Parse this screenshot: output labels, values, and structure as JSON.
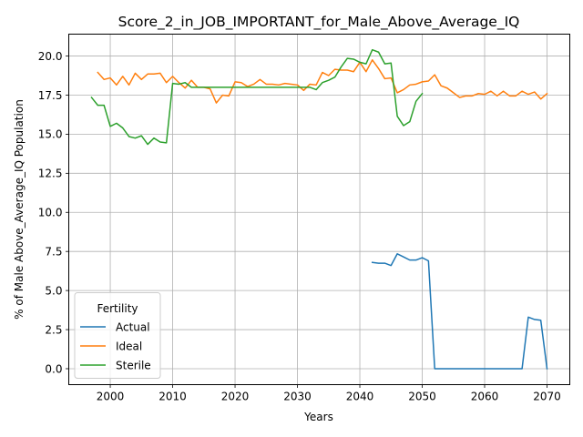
{
  "chart_data": {
    "type": "line",
    "title": "Score_2_in_JOB_IMPORTANT_for_Male_Above_Average_IQ",
    "xlabel": "Years",
    "ylabel": "% of Male Above_Average_IQ Population",
    "xlim": [
      1993.35,
      2073.65
    ],
    "ylim": [
      -1.02,
      21.4
    ],
    "xticks": [
      2000,
      2010,
      2020,
      2030,
      2040,
      2050,
      2060,
      2070
    ],
    "yticks": [
      0.0,
      2.5,
      5.0,
      7.5,
      10.0,
      12.5,
      15.0,
      17.5,
      20.0
    ],
    "xtick_labels": [
      "2000",
      "2010",
      "2020",
      "2030",
      "2040",
      "2050",
      "2060",
      "2070"
    ],
    "ytick_labels": [
      "0.0",
      "2.5",
      "5.0",
      "7.5",
      "10.0",
      "12.5",
      "15.0",
      "17.5",
      "20.0"
    ],
    "grid": true,
    "legend": {
      "title": "Fertility",
      "position": "lower-left"
    },
    "series": [
      {
        "name": "Actual",
        "color": "#1f77b4",
        "x": [
          2042,
          2043,
          2044,
          2045,
          2046,
          2047,
          2048,
          2049,
          2050,
          2051,
          2052,
          2053,
          2054,
          2055,
          2056,
          2057,
          2058,
          2059,
          2060,
          2061,
          2062,
          2063,
          2064,
          2065,
          2066,
          2067,
          2068,
          2069,
          2070
        ],
        "y": [
          6.8,
          6.75,
          6.75,
          6.6,
          7.35,
          7.15,
          6.95,
          6.95,
          7.1,
          6.9,
          0.0,
          0.0,
          0.0,
          0.0,
          0.0,
          0.0,
          0.0,
          0.0,
          0.0,
          0.0,
          0.0,
          0.0,
          0.0,
          0.0,
          0.0,
          3.3,
          3.15,
          3.1,
          0.0
        ]
      },
      {
        "name": "Ideal",
        "color": "#ff7f0e",
        "x": [
          1998,
          1999,
          2000,
          2001,
          2002,
          2003,
          2004,
          2005,
          2006,
          2007,
          2008,
          2009,
          2010,
          2011,
          2012,
          2013,
          2014,
          2015,
          2016,
          2017,
          2018,
          2019,
          2020,
          2021,
          2022,
          2023,
          2024,
          2025,
          2026,
          2027,
          2028,
          2029,
          2030,
          2031,
          2032,
          2033,
          2034,
          2035,
          2036,
          2037,
          2038,
          2039,
          2040,
          2041,
          2042,
          2043,
          2044,
          2045,
          2046,
          2047,
          2048,
          2049,
          2050,
          2051,
          2052,
          2053,
          2054,
          2055,
          2056,
          2057,
          2058,
          2059,
          2060,
          2061,
          2062,
          2063,
          2064,
          2065,
          2066,
          2067,
          2068,
          2069,
          2070
        ],
        "y": [
          18.95,
          18.5,
          18.6,
          18.15,
          18.7,
          18.15,
          18.9,
          18.5,
          18.85,
          18.85,
          18.9,
          18.3,
          18.7,
          18.3,
          17.95,
          18.45,
          18.0,
          18.0,
          17.9,
          17.0,
          17.5,
          17.45,
          18.35,
          18.3,
          18.05,
          18.2,
          18.5,
          18.2,
          18.2,
          18.15,
          18.25,
          18.2,
          18.15,
          17.8,
          18.2,
          18.15,
          18.95,
          18.75,
          19.15,
          19.1,
          19.1,
          19.0,
          19.6,
          19.0,
          19.75,
          19.2,
          18.55,
          18.6,
          17.65,
          17.85,
          18.15,
          18.2,
          18.35,
          18.4,
          18.8,
          18.1,
          17.95,
          17.65,
          17.35,
          17.45,
          17.45,
          17.6,
          17.55,
          17.75,
          17.45,
          17.75,
          17.45,
          17.45,
          17.75,
          17.55,
          17.7,
          17.25,
          17.6
        ]
      },
      {
        "name": "Sterile",
        "color": "#2ca02c",
        "x": [
          1997,
          1998,
          1999,
          2000,
          2001,
          2002,
          2003,
          2004,
          2005,
          2006,
          2007,
          2008,
          2009,
          2010,
          2011,
          2012,
          2013,
          2014,
          2015,
          2016,
          2017,
          2018,
          2019,
          2020,
          2021,
          2022,
          2023,
          2024,
          2025,
          2026,
          2027,
          2028,
          2029,
          2030,
          2031,
          2032,
          2033,
          2034,
          2035,
          2036,
          2037,
          2038,
          2039,
          2040,
          2041,
          2042,
          2043,
          2044,
          2045,
          2046,
          2047,
          2048,
          2049,
          2050
        ],
        "y": [
          17.35,
          16.85,
          16.85,
          15.5,
          15.7,
          15.4,
          14.85,
          14.75,
          14.9,
          14.35,
          14.75,
          14.5,
          14.45,
          18.25,
          18.2,
          18.3,
          18.0,
          18.0,
          18.0,
          18.0,
          18.0,
          18.0,
          18.0,
          18.0,
          18.0,
          18.0,
          18.0,
          18.0,
          18.0,
          18.0,
          18.0,
          18.0,
          18.0,
          18.0,
          18.0,
          18.0,
          17.85,
          18.3,
          18.45,
          18.65,
          19.3,
          19.85,
          19.8,
          19.6,
          19.5,
          20.4,
          20.25,
          19.5,
          19.55,
          16.15,
          15.55,
          15.8,
          17.1,
          17.6
        ]
      }
    ]
  }
}
